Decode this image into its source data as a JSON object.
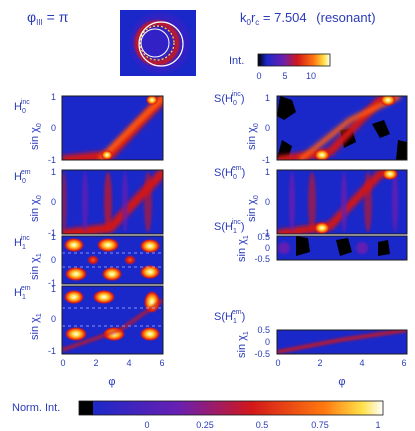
{
  "header": {
    "phase_label": "φ",
    "phase_sub": "III",
    "phase_eq": " = π",
    "k_label": "k",
    "k_sub0": "0",
    "k_r": "r",
    "k_subc": "c",
    "k_value": " = 7.504",
    "k_note": "(resonant)"
  },
  "intensity_bar": {
    "label": "Int.",
    "ticks": [
      "0",
      "5",
      "10"
    ]
  },
  "left_panels": [
    {
      "name": "H",
      "sub": "0",
      "sup": "inc",
      "ylabel": "sin χ",
      "ysub": "0",
      "yticks": [
        "1",
        "0",
        "-1"
      ]
    },
    {
      "name": "H",
      "sub": "0",
      "sup": "em",
      "ylabel": "sin χ",
      "ysub": "0",
      "yticks": [
        "1",
        "0",
        "-1"
      ]
    },
    {
      "name": "H",
      "sub": "1",
      "sup": "inc",
      "ylabel": "sin χ",
      "ysub": "1",
      "yticks": [
        "1",
        "0",
        "-1"
      ]
    },
    {
      "name": "H",
      "sub": "1",
      "sup": "em",
      "ylabel": "sin χ",
      "ysub": "1",
      "yticks": [
        "1",
        "0",
        "-1"
      ]
    }
  ],
  "right_panels": [
    {
      "name": "S(H",
      "sub": "0",
      "sup": "inc",
      "close": ")",
      "ylabel": "sin χ",
      "ysub": "0",
      "yticks": [
        "1",
        "0",
        "-1"
      ]
    },
    {
      "name": "S(H",
      "sub": "0",
      "sup": "em",
      "close": ")",
      "ylabel": "sin χ",
      "ysub": "0",
      "yticks": [
        "1",
        "0",
        "-1"
      ]
    },
    {
      "name": "S(H",
      "sub": "1",
      "sup": "inc",
      "close": ")",
      "ylabel": "sin χ",
      "ysub": "1",
      "yticks": [
        "0.5",
        "0",
        "-0.5"
      ]
    },
    {
      "name": "S(H",
      "sub": "1",
      "sup": "em",
      "close": ")",
      "ylabel": "sin χ",
      "ysub": "1",
      "yticks": [
        "0.5",
        "0",
        "-0.5"
      ]
    }
  ],
  "x_axis": {
    "label": "φ",
    "ticks": [
      "0",
      "2",
      "4",
      "6"
    ]
  },
  "norm_bar": {
    "label": "Norm. Int.",
    "ticks": [
      "0",
      "0.25",
      "0.5",
      "0.75",
      "1"
    ]
  },
  "colors": {
    "text": "#2a3bb8",
    "background_map": "#1b28c9",
    "cmap": [
      "#000000",
      "#1b28c9",
      "#6a1fb0",
      "#d21818",
      "#ff7a10",
      "#ffe24a",
      "#ffffff"
    ]
  }
}
